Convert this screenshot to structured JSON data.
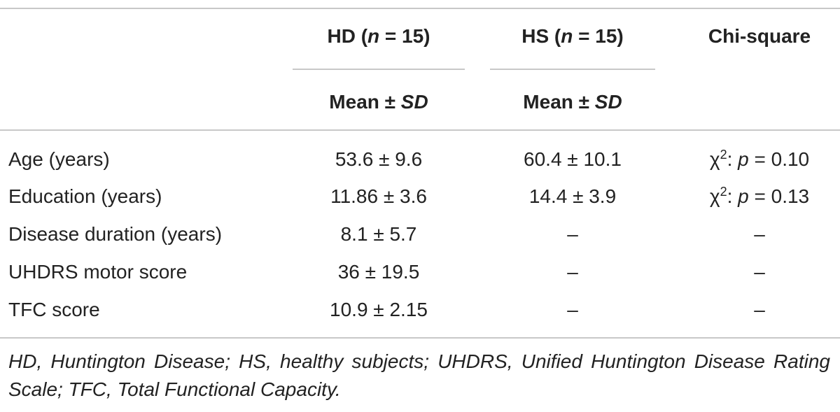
{
  "table": {
    "columns": [
      {
        "head": [
          "HD (",
          "n",
          " = 15)"
        ],
        "sub": [
          "Mean ± ",
          "SD"
        ]
      },
      {
        "head": [
          "HS (",
          "n",
          " = 15)"
        ],
        "sub": [
          "Mean ± ",
          "SD"
        ]
      },
      {
        "head": [
          "Chi-square"
        ]
      }
    ],
    "rows": [
      {
        "label": "Age (years)",
        "hd": "53.6 ± 9.6",
        "hs": "60.4 ± 10.1",
        "chi": [
          "χ",
          "2",
          ": ",
          "p",
          " = 0.10"
        ]
      },
      {
        "label": "Education (years)",
        "hd": "11.86 ± 3.6",
        "hs": "14.4 ± 3.9",
        "chi": [
          "χ",
          "2",
          ": ",
          "p",
          " = 0.13"
        ]
      },
      {
        "label": "Disease duration (years)",
        "hd": "8.1 ± 5.7",
        "hs": "–",
        "chi": "–"
      },
      {
        "label": "UHDRS motor score",
        "hd": "36 ± 19.5",
        "hs": "–",
        "chi": "–"
      },
      {
        "label": "TFC score",
        "hd": "10.9 ± 2.15",
        "hs": "–",
        "chi": "–"
      }
    ]
  },
  "footnote": "HD, Huntington Disease; HS, healthy subjects; UHDRS, Unified Huntington Disease Rating Scale; TFC, Total Functional Capacity."
}
